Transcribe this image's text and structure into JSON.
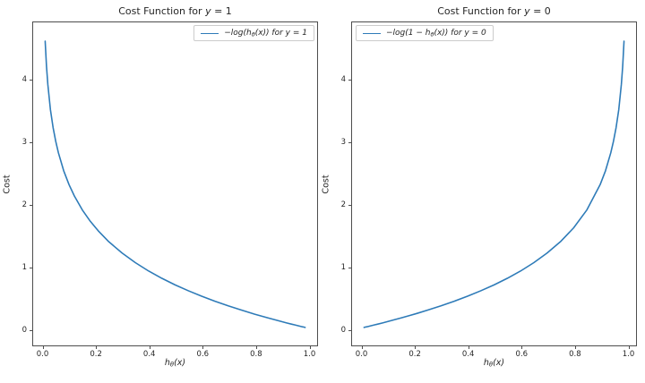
{
  "figure": {
    "background": "#ffffff",
    "line_color": "#2e7bb8",
    "text_color": "#262626",
    "spine_color": "#4d4d4d"
  },
  "chart_data": [
    {
      "type": "line",
      "title": "Cost Function for y = 1",
      "xlabel": "hθ(x)",
      "ylabel": "Cost",
      "grid": false,
      "legend": {
        "position": "upper right",
        "label": "−log(hθ(x)) for y = 1"
      },
      "x_ticks": [
        "0.0",
        "0.2",
        "0.4",
        "0.6",
        "0.8",
        "1.0"
      ],
      "y_ticks": [
        "0",
        "1",
        "2",
        "3",
        "4"
      ],
      "xlim": [
        0,
        1
      ],
      "ylim": [
        0,
        4.9
      ],
      "series": [
        {
          "name": "−log(hθ(x))",
          "x": [
            0.01,
            0.015,
            0.02,
            0.03,
            0.04,
            0.05,
            0.06,
            0.08,
            0.1,
            0.12,
            0.15,
            0.18,
            0.21,
            0.25,
            0.3,
            0.35,
            0.4,
            0.45,
            0.5,
            0.55,
            0.6,
            0.65,
            0.7,
            0.75,
            0.8,
            0.85,
            0.9,
            0.92,
            0.94,
            0.95,
            0.96,
            0.97,
            0.98,
            0.985,
            0.99
          ],
          "y": [
            4.605,
            4.2,
            3.912,
            3.507,
            3.219,
            2.996,
            2.813,
            2.526,
            2.303,
            2.12,
            1.897,
            1.715,
            1.561,
            1.386,
            1.204,
            1.05,
            0.916,
            0.799,
            0.693,
            0.598,
            0.511,
            0.431,
            0.357,
            0.288,
            0.223,
            0.163,
            0.105,
            0.083,
            0.062,
            0.051,
            0.041,
            0.03,
            0.02,
            0.015,
            0.01
          ]
        }
      ]
    },
    {
      "type": "line",
      "title": "Cost Function for y = 0",
      "xlabel": "hθ(x)",
      "ylabel": "Cost",
      "grid": false,
      "legend": {
        "position": "upper left",
        "label": "−log(1 − hθ(x)) for y = 0"
      },
      "x_ticks": [
        "0.0",
        "0.2",
        "0.4",
        "0.6",
        "0.8",
        "1.0"
      ],
      "y_ticks": [
        "0",
        "1",
        "2",
        "3",
        "4"
      ],
      "xlim": [
        0,
        1
      ],
      "ylim": [
        0,
        4.9
      ],
      "series": [
        {
          "name": "−log(1 − hθ(x))",
          "x": [
            0.01,
            0.015,
            0.02,
            0.03,
            0.04,
            0.05,
            0.06,
            0.08,
            0.1,
            0.12,
            0.15,
            0.18,
            0.21,
            0.25,
            0.3,
            0.35,
            0.4,
            0.45,
            0.5,
            0.55,
            0.6,
            0.65,
            0.7,
            0.75,
            0.8,
            0.85,
            0.9,
            0.92,
            0.94,
            0.95,
            0.96,
            0.97,
            0.98,
            0.985,
            0.99
          ],
          "y": [
            0.01,
            0.015,
            0.02,
            0.03,
            0.041,
            0.051,
            0.062,
            0.083,
            0.105,
            0.128,
            0.163,
            0.198,
            0.236,
            0.288,
            0.357,
            0.431,
            0.511,
            0.598,
            0.693,
            0.799,
            0.916,
            1.05,
            1.204,
            1.386,
            1.609,
            1.897,
            2.303,
            2.526,
            2.813,
            2.996,
            3.219,
            3.507,
            3.912,
            4.2,
            4.605
          ]
        }
      ]
    }
  ]
}
